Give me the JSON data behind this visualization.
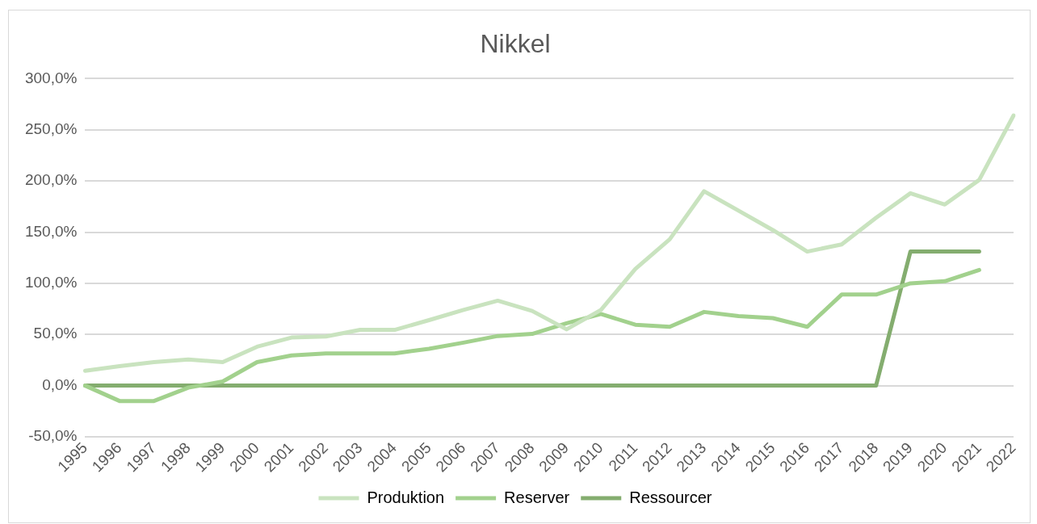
{
  "chart_data": {
    "type": "line",
    "title": "Nikkel",
    "categories": [
      "1995",
      "1996",
      "1997",
      "1998",
      "1999",
      "2000",
      "2001",
      "2002",
      "2003",
      "2004",
      "2005",
      "2006",
      "2007",
      "2008",
      "2009",
      "2010",
      "2011",
      "2012",
      "2013",
      "2014",
      "2015",
      "2016",
      "2017",
      "2018",
      "2019",
      "2020",
      "2021",
      "2022"
    ],
    "series": [
      {
        "name": "Produktion",
        "color": "#c9e3bf",
        "values": [
          14.5,
          19,
          23,
          25.5,
          23,
          38,
          47,
          48,
          54.5,
          54.5,
          64,
          74,
          83,
          73,
          55,
          74,
          114,
          143,
          190,
          171,
          152,
          131,
          138,
          164,
          188,
          177,
          201,
          264
        ]
      },
      {
        "name": "Reserver",
        "color": "#a2d18d",
        "values": [
          0,
          -15,
          -15,
          -2,
          4,
          23,
          29.5,
          31.5,
          31.5,
          31.5,
          36,
          42,
          48.5,
          50.5,
          61,
          70,
          59.5,
          57.5,
          72,
          68,
          66,
          57.5,
          89,
          89,
          100,
          102,
          113,
          null
        ]
      },
      {
        "name": "Ressourcer",
        "color": "#84ad6f",
        "values": [
          0,
          0,
          0,
          0,
          0,
          0,
          0,
          0,
          0,
          0,
          0,
          0,
          0,
          0,
          0,
          0,
          0,
          0,
          0,
          0,
          0,
          0,
          0,
          0,
          131,
          131,
          131,
          null
        ]
      }
    ],
    "ylim": [
      -50,
      300
    ],
    "yticks": [
      {
        "value": -50,
        "label": "-50,0%"
      },
      {
        "value": 0,
        "label": "0,0%"
      },
      {
        "value": 50,
        "label": "50,0%"
      },
      {
        "value": 100,
        "label": "100,0%"
      },
      {
        "value": 150,
        "label": "150,0%"
      },
      {
        "value": 200,
        "label": "200,0%"
      },
      {
        "value": 250,
        "label": "250,0%"
      },
      {
        "value": 300,
        "label": "300,0%"
      }
    ],
    "grid": "y",
    "legend": "bottom",
    "marker": "none",
    "line_style": "solid"
  }
}
